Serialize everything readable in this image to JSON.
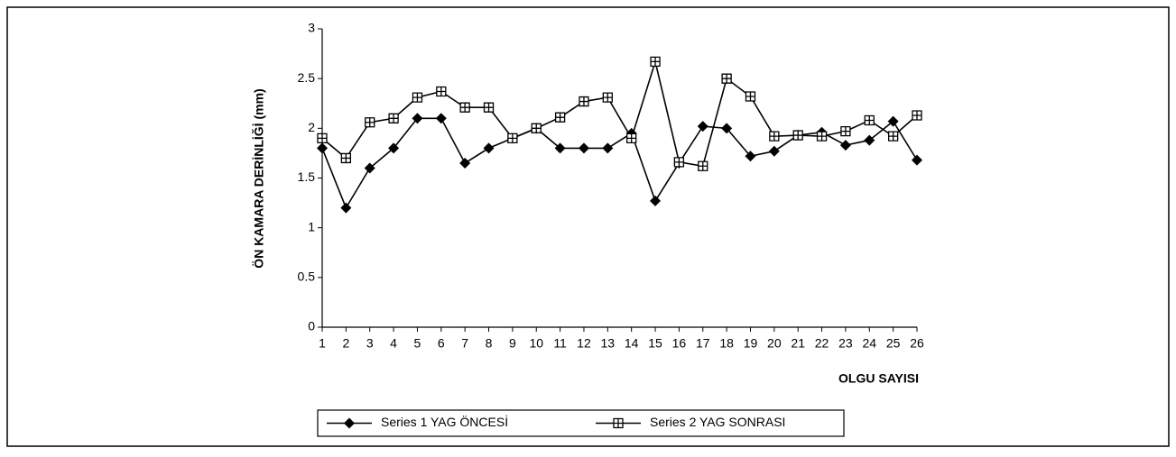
{
  "chart_data": {
    "type": "line",
    "y_label": "ÖN KAMARA DERİNLİĞİ (mm)",
    "x_label": "OLGU SAYISI",
    "x": [
      1,
      2,
      3,
      4,
      5,
      6,
      7,
      8,
      9,
      10,
      11,
      12,
      13,
      14,
      15,
      16,
      17,
      18,
      19,
      20,
      21,
      22,
      23,
      24,
      25,
      26
    ],
    "xlim": [
      1,
      26
    ],
    "xticks": [
      1,
      2,
      3,
      4,
      5,
      6,
      7,
      8,
      9,
      10,
      11,
      12,
      13,
      14,
      15,
      16,
      17,
      18,
      19,
      20,
      21,
      22,
      23,
      24,
      25,
      26
    ],
    "ylim": [
      0,
      3
    ],
    "yticks": [
      0,
      0.5,
      1,
      1.5,
      2,
      2.5,
      3
    ],
    "series": [
      {
        "name": "Series 1 YAG ÖNCESİ",
        "color": "#000000",
        "marker": "diamond",
        "values": [
          1.8,
          1.2,
          1.6,
          1.8,
          2.1,
          2.1,
          1.65,
          1.8,
          1.9,
          2.0,
          1.8,
          1.8,
          1.8,
          1.95,
          1.27,
          1.65,
          2.02,
          2.0,
          1.72,
          1.77,
          1.93,
          1.96,
          1.83,
          1.88,
          2.07,
          1.68
        ]
      },
      {
        "name": "Series 2 YAG SONRASI",
        "color": "#000000",
        "marker": "square",
        "values": [
          1.9,
          1.7,
          2.06,
          2.1,
          2.31,
          2.37,
          2.21,
          2.21,
          1.9,
          2.0,
          2.11,
          2.27,
          2.31,
          1.9,
          2.67,
          1.66,
          1.62,
          2.5,
          2.32,
          1.92,
          1.93,
          1.92,
          1.97,
          2.08,
          1.92,
          2.13
        ]
      }
    ]
  }
}
